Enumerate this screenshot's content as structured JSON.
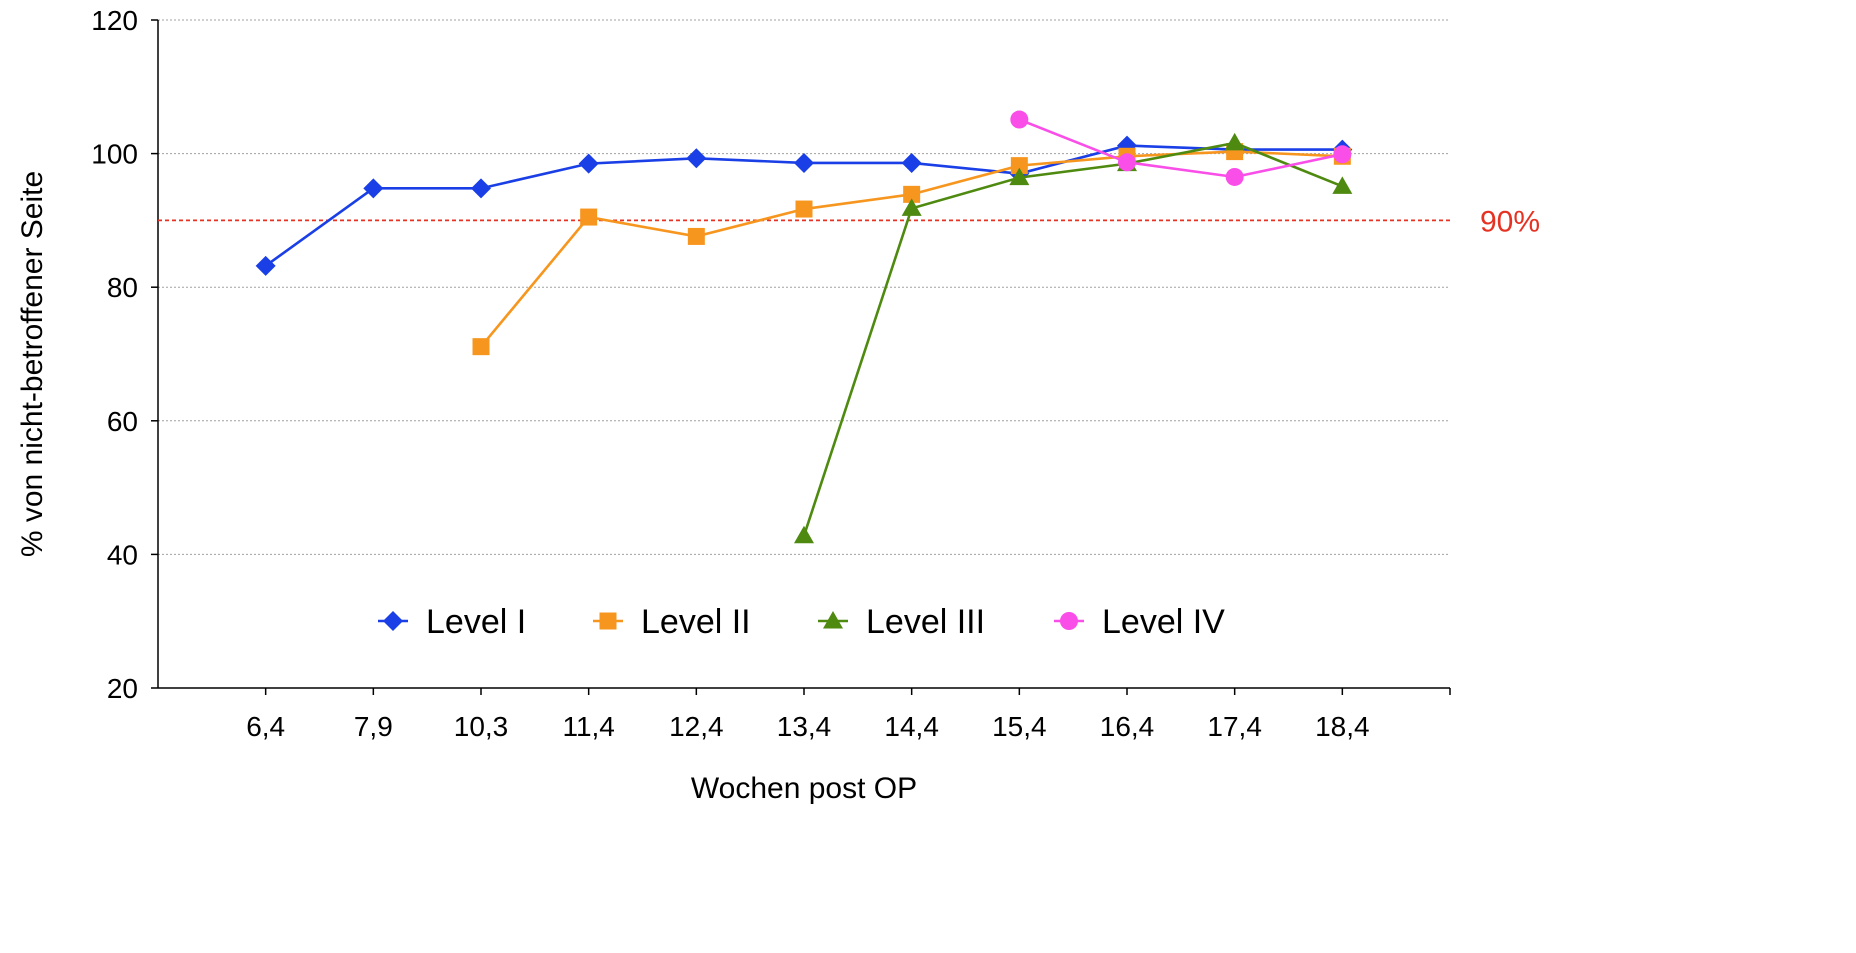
{
  "chart_data": {
    "type": "line",
    "title": "",
    "xlabel": "Wochen post OP",
    "ylabel": "% von nicht-betroffener Seite",
    "categories": [
      "6,4",
      "7,9",
      "10,3",
      "11,4",
      "12,4",
      "13,4",
      "14,4",
      "15,4",
      "16,4",
      "17,4",
      "18,4"
    ],
    "ylim": [
      20,
      120
    ],
    "yticks": [
      "20",
      "40",
      "60",
      "80",
      "100",
      "120"
    ],
    "grid": true,
    "legend_position": "bottom-center",
    "reference_line": {
      "value": 90,
      "label": "90%",
      "color": "#e53222"
    },
    "series": [
      {
        "name": "Level I",
        "color": "#1a3fe6",
        "marker": "diamond",
        "values": [
          83.2,
          94.8,
          94.8,
          98.5,
          99.3,
          98.6,
          98.6,
          97.0,
          101.2,
          100.6,
          100.6
        ]
      },
      {
        "name": "Level II",
        "color": "#f7961f",
        "marker": "square",
        "values": [
          null,
          null,
          71.1,
          90.5,
          87.6,
          91.7,
          93.9,
          98.2,
          99.6,
          100.3,
          99.6
        ]
      },
      {
        "name": "Level III",
        "color": "#4f8a10",
        "marker": "triangle",
        "values": [
          null,
          null,
          null,
          null,
          null,
          42.8,
          91.8,
          96.4,
          98.5,
          101.6,
          95.1
        ]
      },
      {
        "name": "Level IV",
        "color": "#f94ee8",
        "marker": "circle",
        "values": [
          null,
          null,
          null,
          null,
          null,
          null,
          null,
          105.1,
          98.7,
          96.5,
          99.9
        ]
      }
    ]
  }
}
